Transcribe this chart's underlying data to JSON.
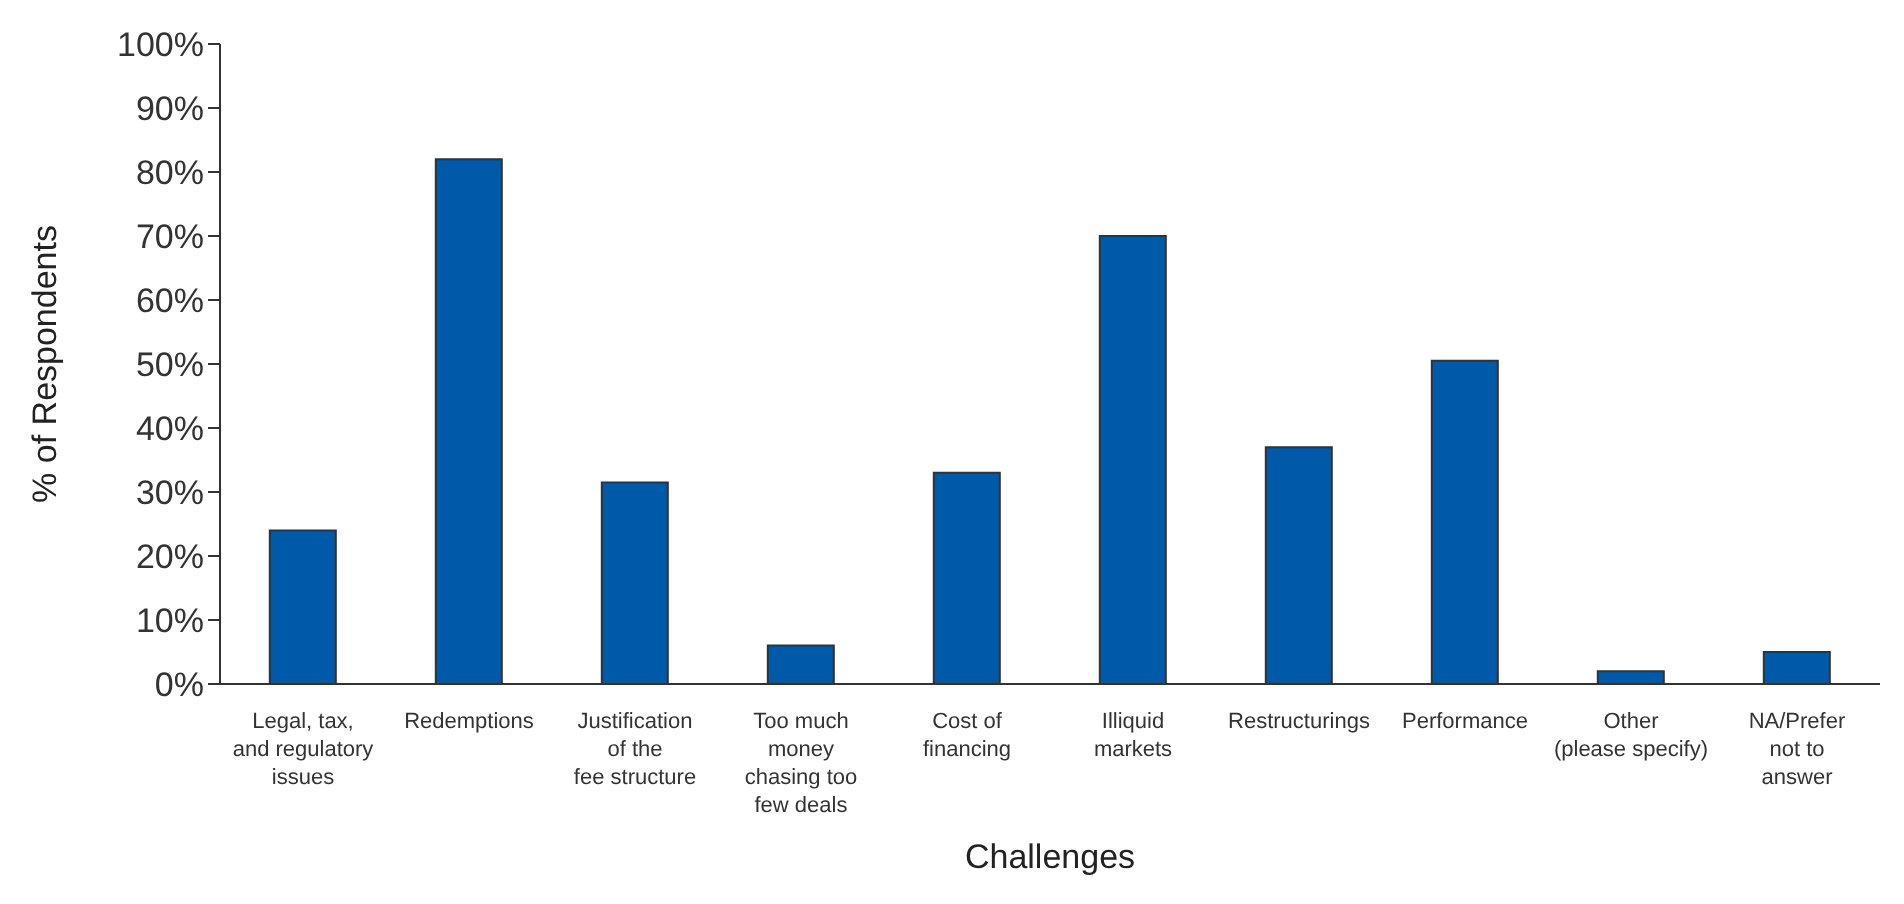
{
  "chart_data": {
    "type": "bar",
    "xlabel": "Challenges",
    "ylabel": "% of Respondents",
    "categories": [
      "Legal, tax,\nand regulatory\nissues",
      "Redemptions",
      "Justification\nof the\nfee structure",
      "Too much\nmoney\nchasing too\nfew deals",
      "Cost of\nfinancing",
      "Illiquid\nmarkets",
      "Restructurings",
      "Performance",
      "Other\n(please specify)",
      "NA/Prefer\nnot to\nanswer"
    ],
    "values": [
      24,
      82,
      31.5,
      6,
      33,
      70,
      37,
      50.5,
      2,
      5
    ],
    "color": "#005aaa",
    "ylim": [
      0,
      100
    ],
    "yticks": [
      {
        "value": 0,
        "label": "0%"
      },
      {
        "value": 10,
        "label": "10%"
      },
      {
        "value": 20,
        "label": "20%"
      },
      {
        "value": 30,
        "label": "30%"
      },
      {
        "value": 40,
        "label": "40%"
      },
      {
        "value": 50,
        "label": "50%"
      },
      {
        "value": 60,
        "label": "60%"
      },
      {
        "value": 70,
        "label": "70%"
      },
      {
        "value": 80,
        "label": "80%"
      },
      {
        "value": 90,
        "label": "90%"
      },
      {
        "value": 100,
        "label": "100%"
      }
    ],
    "grid": false,
    "legend": false
  }
}
